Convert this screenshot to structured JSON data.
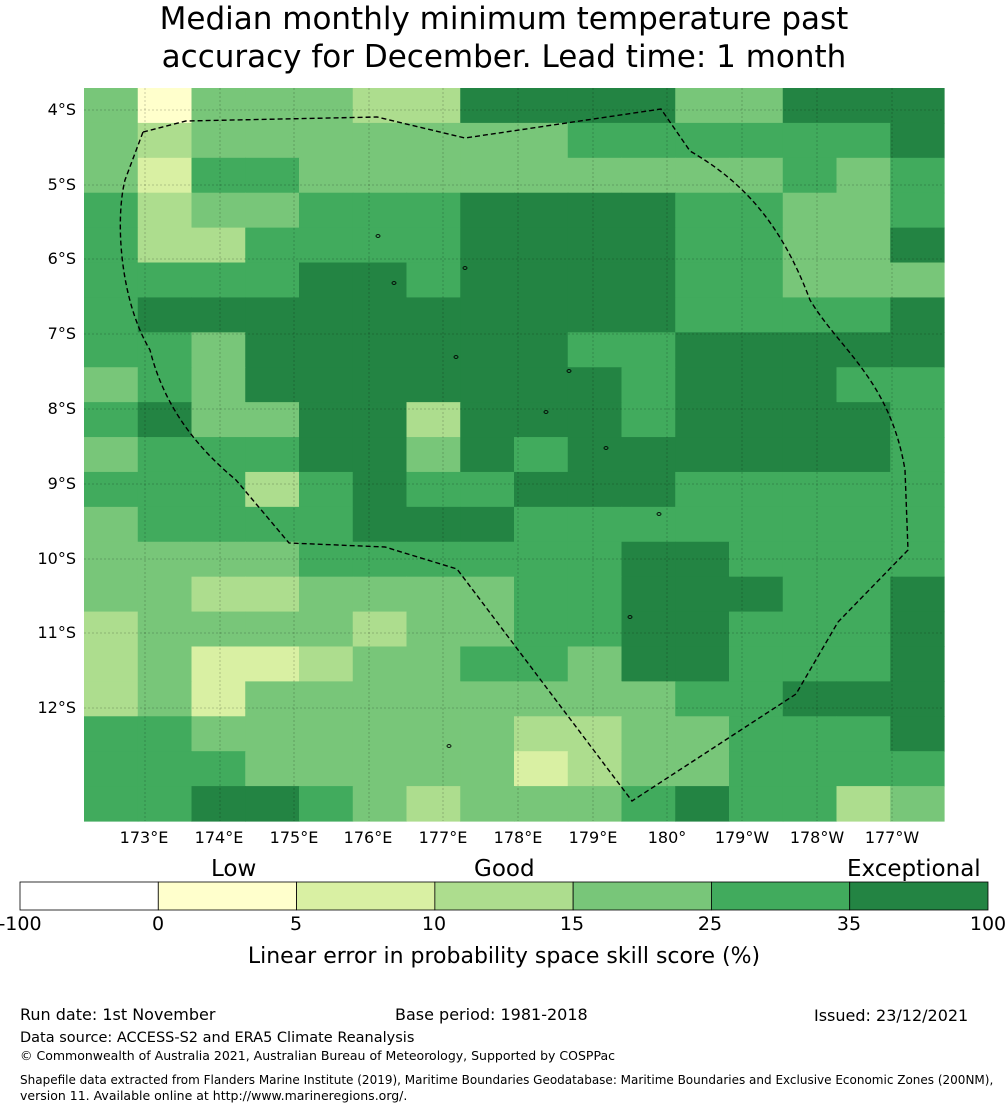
{
  "title": {
    "line1": "Median monthly minimum temperature past",
    "line2": "accuracy for December. Lead time: 1 month"
  },
  "map": {
    "lat_labels": [
      "4°S",
      "5°S",
      "6°S",
      "7°S",
      "8°S",
      "9°S",
      "10°S",
      "11°S",
      "12°S"
    ],
    "lon_labels": [
      "173°E",
      "174°E",
      "175°E",
      "176°E",
      "177°E",
      "178°E",
      "179°E",
      "180°",
      "179°W",
      "178°W",
      "177°W"
    ],
    "boundary_line_style": "dashed",
    "legend_colors": [
      "#ffffff",
      "#ffffcc",
      "#d9f0a3",
      "#addd8e",
      "#78c679",
      "#41ab5d",
      "#238443"
    ],
    "grid_rows": [
      "4144433666644666",
      "4344444445555556",
      "4255444444444545",
      "5344555666655445",
      "5335555666655446",
      "5555665666655444",
      "5666666666655556",
      "5546666665566666",
      "4546666666566655",
      "5644663666566665",
      "4555664656666665",
      "5553565566655555",
      "4555566655555555",
      "4444555555665555",
      "4433444455666556",
      "3444434455665556",
      "3422344554665556",
      "3424444444455666",
      "5544444433445556",
      "5554444423445555",
      "5566543444565534"
    ]
  },
  "colorbar": {
    "band_labels": [
      "Low",
      "Good",
      "Exceptional"
    ],
    "ticks": [
      "-100",
      "0",
      "5",
      "10",
      "15",
      "25",
      "35",
      "100"
    ],
    "colors": [
      "#ffffff",
      "#ffffcc",
      "#d9f0a3",
      "#addd8e",
      "#78c679",
      "#41ab5d",
      "#238443"
    ],
    "label": "Linear error in probability space skill score (%)"
  },
  "footer": {
    "run_date": "Run date: 1st November",
    "base_period": "Base period: 1981-2018",
    "issued": "Issued: 23/12/2021",
    "data_source": "Data source: ACCESS-S2 and ERA5 Climate Reanalysis",
    "copyright": "© Commonwealth of Australia 2021, Australian Bureau of Meteorology, Supported by COSPPac",
    "shapefile_line1": "Shapefile data extracted from Flanders Marine Institute (2019), Maritime Boundaries Geodatabase: Maritime Boundaries and Exclusive Economic Zones (200NM),",
    "shapefile_line2": "version 11. Available online at http://www.marineregions.org/."
  }
}
